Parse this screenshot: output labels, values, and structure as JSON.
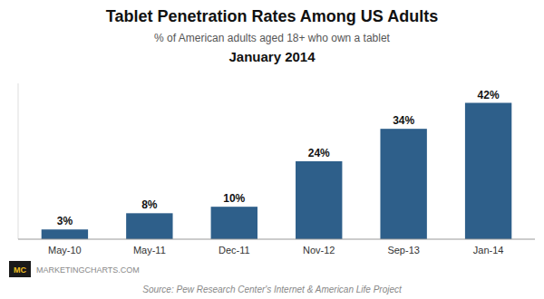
{
  "chart_data": {
    "type": "bar",
    "title": "Tablet Penetration Rates Among US Adults",
    "subtitle": "% of American adults aged 18+ who own a tablet",
    "annotations": [
      "January 2014",
      "Source: Pew Research Center's Internet & American Life Project",
      "MARKETINGCHARTS.COM",
      "MC"
    ],
    "categories": [
      "May-10",
      "May-11",
      "Dec-11",
      "Nov-12",
      "Sep-13",
      "Jan-14"
    ],
    "values": [
      3,
      8,
      10,
      24,
      34,
      42
    ],
    "value_labels": [
      "3%",
      "8%",
      "10%",
      "24%",
      "34%",
      "42%"
    ],
    "color": "#2e5f8a",
    "ylim": [
      0,
      48
    ],
    "grid": false,
    "data_labels": true,
    "tick_labels": "x"
  }
}
